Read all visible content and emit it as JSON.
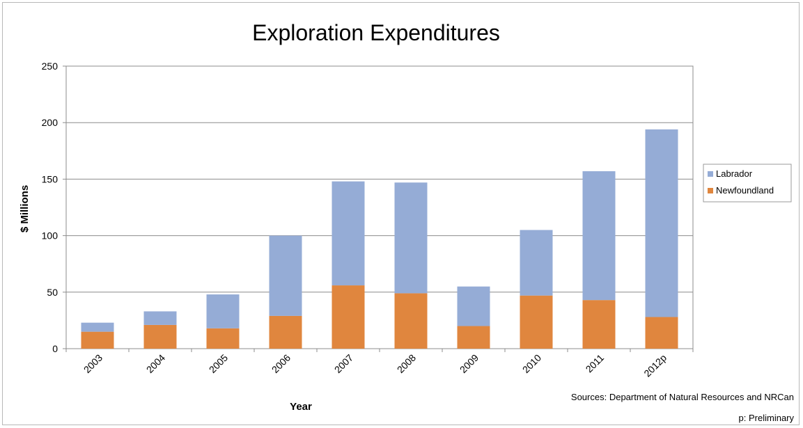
{
  "chart_data": {
    "type": "bar",
    "stacked": true,
    "title": "Exploration Expenditures",
    "xlabel": "Year",
    "ylabel": "$ Millions",
    "ylim": [
      0,
      250
    ],
    "yticks": [
      "0",
      "50",
      "100",
      "150",
      "200",
      "250"
    ],
    "grid": true,
    "legend_position": "right",
    "categories": [
      "2003",
      "2004",
      "2005",
      "2006",
      "2007",
      "2008",
      "2009",
      "2010",
      "2011",
      "2012p"
    ],
    "series": [
      {
        "name": "Newfoundland",
        "color": "#e0863e",
        "values": [
          15,
          21,
          18,
          29,
          56,
          49,
          20,
          47,
          43,
          28
        ]
      },
      {
        "name": "Labrador",
        "color": "#95acd6",
        "values": [
          8,
          12,
          30,
          71,
          92,
          98,
          35,
          58,
          114,
          166
        ]
      }
    ],
    "legend_order": [
      "Labrador",
      "Newfoundland"
    ],
    "notes": [
      "Sources: Department of Natural Resources and NRCan",
      "p: Preliminary"
    ]
  }
}
